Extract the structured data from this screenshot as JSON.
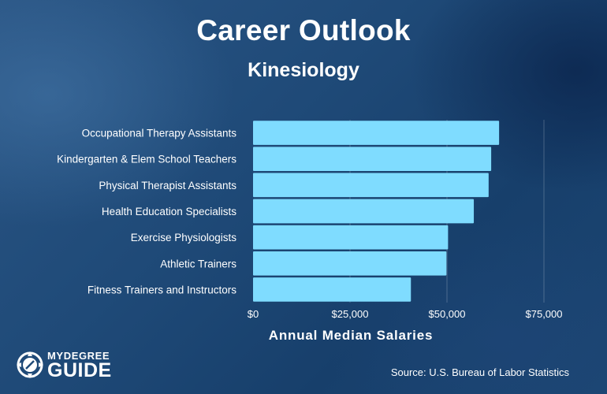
{
  "header": {
    "title": "Career Outlook",
    "subtitle": "Kinesiology"
  },
  "chart_data": {
    "type": "bar",
    "orientation": "horizontal",
    "title": "Career Outlook",
    "subtitle": "Kinesiology",
    "categories": [
      "Occupational Therapy Assistants",
      "Kindergarten & Elem School Teachers",
      "Physical Therapist Assistants",
      "Health Education Specialists",
      "Exercise Physiologists",
      "Athletic Trainers",
      "Fitness Trainers and Instructors"
    ],
    "values": [
      63440,
      61400,
      60740,
      56920,
      50280,
      49860,
      40700
    ],
    "xlabel": "Annual Median Salaries",
    "ylabel": "",
    "xlim": [
      0,
      75000
    ],
    "ticks": [
      0,
      25000,
      50000,
      75000
    ],
    "tick_labels": [
      "$0",
      "$25,000",
      "$50,000",
      "$75,000"
    ],
    "grid": true,
    "bar_color": "#7fdcff"
  },
  "footer": {
    "source": "Source: U.S. Bureau of Labor Statistics",
    "logo_top": "MYDEGREE",
    "logo_bottom": "GUIDE"
  },
  "colors": {
    "background": "#1f4a78",
    "bar": "#7fdcff",
    "text": "#ffffff"
  }
}
